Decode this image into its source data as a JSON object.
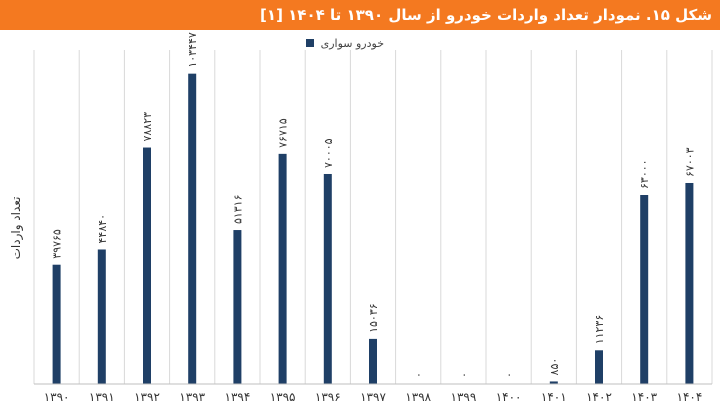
{
  "chart_data": {
    "type": "bar",
    "title": "شکل ۱۵. نمودار تعداد واردات خودرو از سال ۱۳۹۰ تا ۱۴۰۴ [۱]",
    "ylabel": "تعداد واردات",
    "xlabel": "",
    "legend": "top-center",
    "ylim": [
      0,
      108000
    ],
    "grid": true,
    "colors": {
      "bar": "#1f3f66",
      "grid": "#d9d9d9",
      "title_bg": "#f47920"
    },
    "categories": [
      "۱۳۹۰",
      "۱۳۹۱",
      "۱۳۹۲",
      "۱۳۹۳",
      "۱۳۹۴",
      "۱۳۹۵",
      "۱۳۹۶",
      "۱۳۹۷",
      "۱۳۹۸",
      "۱۳۹۹",
      "۱۴۰۰",
      "۱۴۰۱",
      "۱۴۰۲",
      "۱۴۰۳",
      "۱۴۰۴"
    ],
    "series": [
      {
        "name": "خودرو سواری",
        "values": [
          39765,
          44840,
          78823,
          103447,
          51316,
          76715,
          70005,
          15036,
          0,
          0,
          0,
          850,
          11236,
          63000,
          67003
        ],
        "labels": [
          "۳۹۷۶۵",
          "۴۴۸۴۰",
          "۷۸۸۲۳",
          "۱۰۳۴۴۷",
          "۵۱۳۱۶",
          "۷۶۷۱۵",
          "۷۰۰۰۵",
          "۱۵۰۳۶",
          "۰",
          "۰",
          "۰",
          "۸۵۰",
          "۱۱۲۳۶",
          "۶۳۰۰۰",
          "۶۷۰۰۳"
        ]
      }
    ]
  }
}
